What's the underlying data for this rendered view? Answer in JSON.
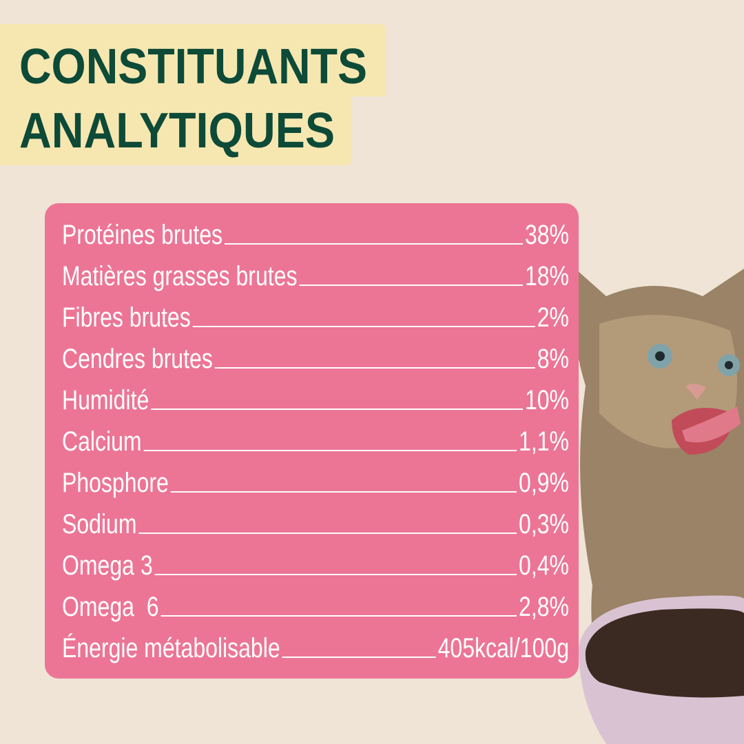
{
  "header": {
    "title_lines": [
      "CONSTITUANTS",
      "ANALYTIQUES"
    ]
  },
  "table": {
    "rows": [
      [
        "Protéines brutes",
        "38%"
      ],
      [
        "Matières grasses brutes",
        "18%"
      ],
      [
        "Fibres brutes",
        "2%"
      ],
      [
        "Cendres brutes",
        "8%"
      ],
      [
        "Humidité",
        "10%"
      ],
      [
        "Calcium",
        "1,1%"
      ],
      [
        "Phosphore",
        "0,9%"
      ],
      [
        "Sodium",
        "0,3%"
      ],
      [
        "Omega 3",
        "0,4%"
      ],
      [
        "Omega  6",
        "2,8%"
      ],
      [
        "Énergie métabolisable",
        "405kcal/100g"
      ]
    ]
  }
}
